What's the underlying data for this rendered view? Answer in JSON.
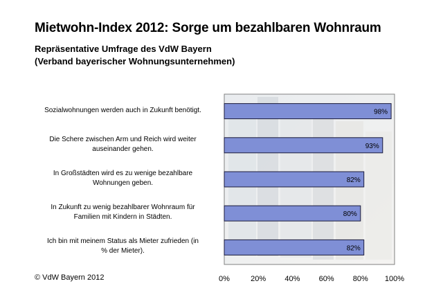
{
  "header": {
    "title": "Mietwohn-Index 2012: Sorge um bezahlbaren Wohnraum",
    "subtitle_line1": "Repräsentative Umfrage des VdW Bayern",
    "subtitle_line2": "(Verband bayerischer Wohnungsunternehmen)"
  },
  "footer": {
    "copyright": "© VdW Bayern 2012"
  },
  "chart_data": {
    "type": "bar",
    "orientation": "horizontal",
    "title": "Mietwohn-Index 2012: Sorge um bezahlbaren Wohnraum",
    "subtitle": "Repräsentative Umfrage des VdW Bayern (Verband bayerischer Wohnungsunternehmen)",
    "xlabel": "",
    "ylabel": "",
    "xlim": [
      0,
      100
    ],
    "x_ticks": [
      "0%",
      "20%",
      "40%",
      "60%",
      "80%",
      "100%"
    ],
    "grid": false,
    "legend": "none",
    "bar_color": "#7f8fd6",
    "categories": [
      [
        "Sozialwohnungen werden auch in Zukunft benötigt."
      ],
      [
        "Die Schere zwischen Arm und Reich wird weiter",
        "auseinander gehen."
      ],
      [
        "In Großstädten wird es zu wenige bezahlbare",
        "Wohnungen geben."
      ],
      [
        "In Zukunft zu wenig bezahlbarer Wohnraum für",
        "Familien mit Kindern in Städten."
      ],
      [
        "Ich bin mit meinem Status als Mieter zufrieden (in",
        "% der Mieter)."
      ]
    ],
    "values": [
      98,
      93,
      82,
      80,
      82
    ],
    "value_labels": [
      "98%",
      "93%",
      "82%",
      "80%",
      "82%"
    ]
  }
}
